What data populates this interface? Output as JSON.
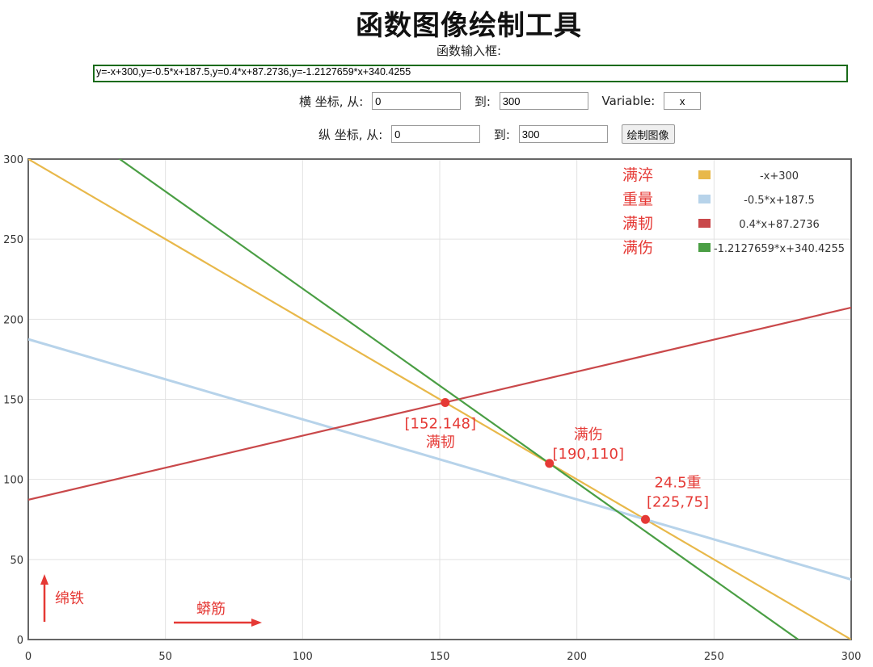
{
  "header": {
    "title": "函数图像绘制工具",
    "input_label": "函数输入框:",
    "function_text": "y=-x+300,y=-0.5*x+187.5,y=0.4*x+87.2736,y=-1.2127659*x+340.4255"
  },
  "controls": {
    "x_axis_label": "横 坐标, 从:",
    "x_from": "0",
    "to_label": "到:",
    "x_to": "300",
    "variable_label": "Variable:",
    "variable": "x",
    "y_axis_label": "纵 坐标, 从:",
    "y_from": "0",
    "y_to": "300",
    "draw_button": "绘制图像"
  },
  "chart_data": {
    "type": "line",
    "xlim": [
      0,
      300
    ],
    "ylim": [
      0,
      300
    ],
    "grid": true,
    "legend_position": "top-right",
    "x_ticks": [
      0,
      50,
      100,
      150,
      200,
      250,
      300
    ],
    "y_ticks": [
      0,
      50,
      100,
      150,
      200,
      250,
      300
    ],
    "series": [
      {
        "name": "-x+300",
        "label": "满淬",
        "slope": -1,
        "intercept": 300,
        "color": "#e8b84a"
      },
      {
        "name": "-0.5*x+187.5",
        "label": "重量",
        "slope": -0.5,
        "intercept": 187.5,
        "color": "#b7d3ea"
      },
      {
        "name": "0.4*x+87.2736",
        "label": "满韧",
        "slope": 0.4,
        "intercept": 87.2736,
        "color": "#c9484a"
      },
      {
        "name": "-1.2127659*x+340.4255",
        "label": "满伤",
        "slope": -1.2127659,
        "intercept": 340.4255,
        "color": "#4a9e44"
      }
    ],
    "points": [
      {
        "x": 152,
        "y": 148,
        "label": "[152.148]",
        "note": "满韧"
      },
      {
        "x": 190,
        "y": 110,
        "label": "[190,110]",
        "note": "满伤"
      },
      {
        "x": 225,
        "y": 75,
        "label": "[225,75]",
        "note": "24.5重"
      }
    ],
    "annotations": [
      {
        "text": "绵铁",
        "direction": "up"
      },
      {
        "text": "蟒筋",
        "direction": "right"
      }
    ],
    "annotation_color": "#e53935",
    "point_color": "#e53935"
  }
}
